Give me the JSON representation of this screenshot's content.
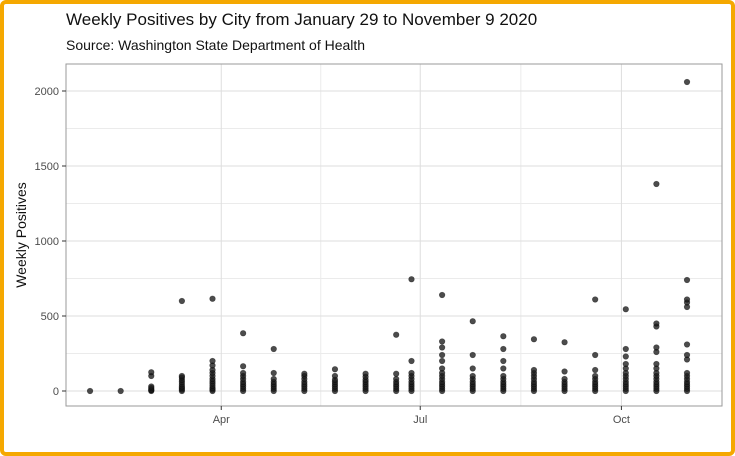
{
  "chart_data": {
    "type": "scatter",
    "title": "Weekly Positives by City from January 29 to November 9 2020",
    "subtitle": "Source: Washington State Department of Health",
    "xlabel": "",
    "ylabel": "Weekly Positives",
    "x_ticks": [
      {
        "date": "2020-04-01",
        "label": "Apr"
      },
      {
        "date": "2020-07-01",
        "label": "Jul"
      },
      {
        "date": "2020-10-01",
        "label": "Oct"
      }
    ],
    "y_ticks": [
      0,
      500,
      1000,
      1500,
      2000
    ],
    "xlim": [
      "2020-01-21",
      "2020-11-16"
    ],
    "ylim": [
      -100,
      2180
    ],
    "grid": true,
    "legend": "none",
    "point_color": "#1a1a1a",
    "points": [
      {
        "x": "2020-02-01",
        "y": 0
      },
      {
        "x": "2020-02-15",
        "y": 0
      },
      {
        "x": "2020-02-29",
        "y": 0
      },
      {
        "x": "2020-02-29",
        "y": 5
      },
      {
        "x": "2020-02-29",
        "y": 10
      },
      {
        "x": "2020-02-29",
        "y": 20
      },
      {
        "x": "2020-02-29",
        "y": 30
      },
      {
        "x": "2020-02-29",
        "y": 100
      },
      {
        "x": "2020-02-29",
        "y": 125
      },
      {
        "x": "2020-03-14",
        "y": 0
      },
      {
        "x": "2020-03-14",
        "y": 10
      },
      {
        "x": "2020-03-14",
        "y": 20
      },
      {
        "x": "2020-03-14",
        "y": 30
      },
      {
        "x": "2020-03-14",
        "y": 45
      },
      {
        "x": "2020-03-14",
        "y": 60
      },
      {
        "x": "2020-03-14",
        "y": 75
      },
      {
        "x": "2020-03-14",
        "y": 90
      },
      {
        "x": "2020-03-14",
        "y": 100
      },
      {
        "x": "2020-03-14",
        "y": 600
      },
      {
        "x": "2020-03-28",
        "y": 0
      },
      {
        "x": "2020-03-28",
        "y": 10
      },
      {
        "x": "2020-03-28",
        "y": 20
      },
      {
        "x": "2020-03-28",
        "y": 35
      },
      {
        "x": "2020-03-28",
        "y": 50
      },
      {
        "x": "2020-03-28",
        "y": 65
      },
      {
        "x": "2020-03-28",
        "y": 80
      },
      {
        "x": "2020-03-28",
        "y": 100
      },
      {
        "x": "2020-03-28",
        "y": 120
      },
      {
        "x": "2020-03-28",
        "y": 140
      },
      {
        "x": "2020-03-28",
        "y": 170
      },
      {
        "x": "2020-03-28",
        "y": 200
      },
      {
        "x": "2020-03-28",
        "y": 615
      },
      {
        "x": "2020-04-11",
        "y": 0
      },
      {
        "x": "2020-04-11",
        "y": 15
      },
      {
        "x": "2020-04-11",
        "y": 30
      },
      {
        "x": "2020-04-11",
        "y": 45
      },
      {
        "x": "2020-04-11",
        "y": 60
      },
      {
        "x": "2020-04-11",
        "y": 80
      },
      {
        "x": "2020-04-11",
        "y": 100
      },
      {
        "x": "2020-04-11",
        "y": 120
      },
      {
        "x": "2020-04-11",
        "y": 165
      },
      {
        "x": "2020-04-11",
        "y": 385
      },
      {
        "x": "2020-04-25",
        "y": 0
      },
      {
        "x": "2020-04-25",
        "y": 15
      },
      {
        "x": "2020-04-25",
        "y": 30
      },
      {
        "x": "2020-04-25",
        "y": 45
      },
      {
        "x": "2020-04-25",
        "y": 60
      },
      {
        "x": "2020-04-25",
        "y": 80
      },
      {
        "x": "2020-04-25",
        "y": 120
      },
      {
        "x": "2020-04-25",
        "y": 280
      },
      {
        "x": "2020-05-09",
        "y": 0
      },
      {
        "x": "2020-05-09",
        "y": 15
      },
      {
        "x": "2020-05-09",
        "y": 30
      },
      {
        "x": "2020-05-09",
        "y": 45
      },
      {
        "x": "2020-05-09",
        "y": 60
      },
      {
        "x": "2020-05-09",
        "y": 80
      },
      {
        "x": "2020-05-09",
        "y": 100
      },
      {
        "x": "2020-05-09",
        "y": 115
      },
      {
        "x": "2020-05-23",
        "y": 0
      },
      {
        "x": "2020-05-23",
        "y": 15
      },
      {
        "x": "2020-05-23",
        "y": 30
      },
      {
        "x": "2020-05-23",
        "y": 45
      },
      {
        "x": "2020-05-23",
        "y": 60
      },
      {
        "x": "2020-05-23",
        "y": 75
      },
      {
        "x": "2020-05-23",
        "y": 100
      },
      {
        "x": "2020-05-23",
        "y": 145
      },
      {
        "x": "2020-06-06",
        "y": 0
      },
      {
        "x": "2020-06-06",
        "y": 15
      },
      {
        "x": "2020-06-06",
        "y": 30
      },
      {
        "x": "2020-06-06",
        "y": 45
      },
      {
        "x": "2020-06-06",
        "y": 60
      },
      {
        "x": "2020-06-06",
        "y": 75
      },
      {
        "x": "2020-06-06",
        "y": 95
      },
      {
        "x": "2020-06-06",
        "y": 115
      },
      {
        "x": "2020-06-20",
        "y": 0
      },
      {
        "x": "2020-06-20",
        "y": 15
      },
      {
        "x": "2020-06-20",
        "y": 30
      },
      {
        "x": "2020-06-20",
        "y": 45
      },
      {
        "x": "2020-06-20",
        "y": 60
      },
      {
        "x": "2020-06-20",
        "y": 80
      },
      {
        "x": "2020-06-20",
        "y": 115
      },
      {
        "x": "2020-06-20",
        "y": 375
      },
      {
        "x": "2020-06-27",
        "y": 0
      },
      {
        "x": "2020-06-27",
        "y": 15
      },
      {
        "x": "2020-06-27",
        "y": 30
      },
      {
        "x": "2020-06-27",
        "y": 45
      },
      {
        "x": "2020-06-27",
        "y": 60
      },
      {
        "x": "2020-06-27",
        "y": 80
      },
      {
        "x": "2020-06-27",
        "y": 100
      },
      {
        "x": "2020-06-27",
        "y": 120
      },
      {
        "x": "2020-06-27",
        "y": 200
      },
      {
        "x": "2020-06-27",
        "y": 745
      },
      {
        "x": "2020-07-11",
        "y": 0
      },
      {
        "x": "2020-07-11",
        "y": 15
      },
      {
        "x": "2020-07-11",
        "y": 30
      },
      {
        "x": "2020-07-11",
        "y": 45
      },
      {
        "x": "2020-07-11",
        "y": 60
      },
      {
        "x": "2020-07-11",
        "y": 80
      },
      {
        "x": "2020-07-11",
        "y": 100
      },
      {
        "x": "2020-07-11",
        "y": 120
      },
      {
        "x": "2020-07-11",
        "y": 150
      },
      {
        "x": "2020-07-11",
        "y": 200
      },
      {
        "x": "2020-07-11",
        "y": 240
      },
      {
        "x": "2020-07-11",
        "y": 290
      },
      {
        "x": "2020-07-11",
        "y": 330
      },
      {
        "x": "2020-07-11",
        "y": 640
      },
      {
        "x": "2020-07-25",
        "y": 0
      },
      {
        "x": "2020-07-25",
        "y": 15
      },
      {
        "x": "2020-07-25",
        "y": 30
      },
      {
        "x": "2020-07-25",
        "y": 45
      },
      {
        "x": "2020-07-25",
        "y": 60
      },
      {
        "x": "2020-07-25",
        "y": 80
      },
      {
        "x": "2020-07-25",
        "y": 100
      },
      {
        "x": "2020-07-25",
        "y": 150
      },
      {
        "x": "2020-07-25",
        "y": 240
      },
      {
        "x": "2020-07-25",
        "y": 465
      },
      {
        "x": "2020-08-08",
        "y": 0
      },
      {
        "x": "2020-08-08",
        "y": 15
      },
      {
        "x": "2020-08-08",
        "y": 30
      },
      {
        "x": "2020-08-08",
        "y": 45
      },
      {
        "x": "2020-08-08",
        "y": 60
      },
      {
        "x": "2020-08-08",
        "y": 80
      },
      {
        "x": "2020-08-08",
        "y": 100
      },
      {
        "x": "2020-08-08",
        "y": 150
      },
      {
        "x": "2020-08-08",
        "y": 200
      },
      {
        "x": "2020-08-08",
        "y": 280
      },
      {
        "x": "2020-08-08",
        "y": 365
      },
      {
        "x": "2020-08-22",
        "y": 0
      },
      {
        "x": "2020-08-22",
        "y": 15
      },
      {
        "x": "2020-08-22",
        "y": 30
      },
      {
        "x": "2020-08-22",
        "y": 45
      },
      {
        "x": "2020-08-22",
        "y": 60
      },
      {
        "x": "2020-08-22",
        "y": 80
      },
      {
        "x": "2020-08-22",
        "y": 100
      },
      {
        "x": "2020-08-22",
        "y": 120
      },
      {
        "x": "2020-08-22",
        "y": 140
      },
      {
        "x": "2020-08-22",
        "y": 345
      },
      {
        "x": "2020-09-05",
        "y": 0
      },
      {
        "x": "2020-09-05",
        "y": 15
      },
      {
        "x": "2020-09-05",
        "y": 30
      },
      {
        "x": "2020-09-05",
        "y": 45
      },
      {
        "x": "2020-09-05",
        "y": 60
      },
      {
        "x": "2020-09-05",
        "y": 80
      },
      {
        "x": "2020-09-05",
        "y": 130
      },
      {
        "x": "2020-09-05",
        "y": 325
      },
      {
        "x": "2020-09-19",
        "y": 0
      },
      {
        "x": "2020-09-19",
        "y": 15
      },
      {
        "x": "2020-09-19",
        "y": 30
      },
      {
        "x": "2020-09-19",
        "y": 45
      },
      {
        "x": "2020-09-19",
        "y": 60
      },
      {
        "x": "2020-09-19",
        "y": 80
      },
      {
        "x": "2020-09-19",
        "y": 100
      },
      {
        "x": "2020-09-19",
        "y": 140
      },
      {
        "x": "2020-09-19",
        "y": 240
      },
      {
        "x": "2020-09-19",
        "y": 610
      },
      {
        "x": "2020-10-03",
        "y": 0
      },
      {
        "x": "2020-10-03",
        "y": 15
      },
      {
        "x": "2020-10-03",
        "y": 30
      },
      {
        "x": "2020-10-03",
        "y": 45
      },
      {
        "x": "2020-10-03",
        "y": 60
      },
      {
        "x": "2020-10-03",
        "y": 80
      },
      {
        "x": "2020-10-03",
        "y": 100
      },
      {
        "x": "2020-10-03",
        "y": 120
      },
      {
        "x": "2020-10-03",
        "y": 150
      },
      {
        "x": "2020-10-03",
        "y": 180
      },
      {
        "x": "2020-10-03",
        "y": 230
      },
      {
        "x": "2020-10-03",
        "y": 280
      },
      {
        "x": "2020-10-03",
        "y": 545
      },
      {
        "x": "2020-10-17",
        "y": 0
      },
      {
        "x": "2020-10-17",
        "y": 15
      },
      {
        "x": "2020-10-17",
        "y": 30
      },
      {
        "x": "2020-10-17",
        "y": 45
      },
      {
        "x": "2020-10-17",
        "y": 60
      },
      {
        "x": "2020-10-17",
        "y": 80
      },
      {
        "x": "2020-10-17",
        "y": 100
      },
      {
        "x": "2020-10-17",
        "y": 120
      },
      {
        "x": "2020-10-17",
        "y": 150
      },
      {
        "x": "2020-10-17",
        "y": 180
      },
      {
        "x": "2020-10-17",
        "y": 260
      },
      {
        "x": "2020-10-17",
        "y": 290
      },
      {
        "x": "2020-10-17",
        "y": 430
      },
      {
        "x": "2020-10-17",
        "y": 450
      },
      {
        "x": "2020-10-17",
        "y": 1380
      },
      {
        "x": "2020-10-31",
        "y": 0
      },
      {
        "x": "2020-10-31",
        "y": 15
      },
      {
        "x": "2020-10-31",
        "y": 30
      },
      {
        "x": "2020-10-31",
        "y": 45
      },
      {
        "x": "2020-10-31",
        "y": 60
      },
      {
        "x": "2020-10-31",
        "y": 80
      },
      {
        "x": "2020-10-31",
        "y": 100
      },
      {
        "x": "2020-10-31",
        "y": 120
      },
      {
        "x": "2020-10-31",
        "y": 210
      },
      {
        "x": "2020-10-31",
        "y": 240
      },
      {
        "x": "2020-10-31",
        "y": 310
      },
      {
        "x": "2020-10-31",
        "y": 560
      },
      {
        "x": "2020-10-31",
        "y": 590
      },
      {
        "x": "2020-10-31",
        "y": 610
      },
      {
        "x": "2020-10-31",
        "y": 740
      },
      {
        "x": "2020-10-31",
        "y": 2060
      }
    ]
  }
}
